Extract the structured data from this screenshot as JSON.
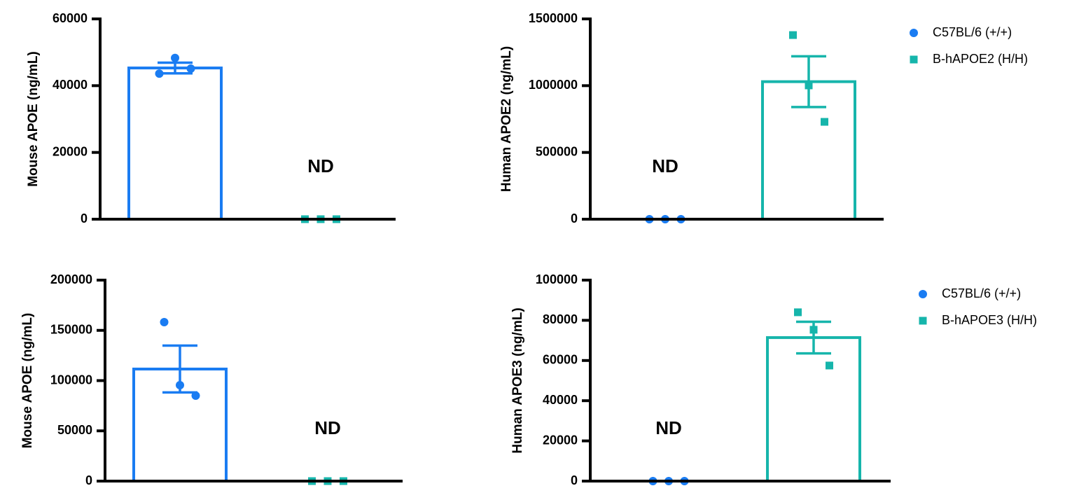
{
  "chart_data": [
    {
      "type": "bar",
      "ylabel": "Mouse APOE (ng/mL)",
      "ylim": [
        0,
        60000
      ],
      "yticks": [
        0,
        20000,
        40000,
        60000
      ],
      "series": [
        {
          "color": "#1a7cf2",
          "marker": "circle",
          "value": 45300,
          "error": 1600,
          "points": [
            43600,
            48300,
            45100
          ]
        },
        {
          "color": "#16b5ab",
          "marker": "square",
          "value": 0,
          "points": [
            0,
            0,
            0
          ],
          "label": "ND"
        }
      ]
    },
    {
      "type": "bar",
      "ylabel": "Human APOE2 (ng/mL)",
      "ylim": [
        0,
        1500000
      ],
      "yticks": [
        0,
        500000,
        1000000,
        1500000
      ],
      "legend": true,
      "series": [
        {
          "name": "C57BL/6 (+/+)",
          "color": "#1a7cf2",
          "marker": "circle",
          "value": 0,
          "points": [
            0,
            0,
            0
          ],
          "label": "ND"
        },
        {
          "name": "B-hAPOE2 (H/H)",
          "color": "#16b5ab",
          "marker": "square",
          "value": 1030000,
          "error": 190000,
          "points": [
            1379000,
            1002000,
            729000
          ]
        }
      ]
    },
    {
      "type": "bar",
      "ylabel": "Mouse APOE (ng/mL)",
      "ylim": [
        0,
        200000
      ],
      "yticks": [
        0,
        50000,
        100000,
        150000,
        200000
      ],
      "series": [
        {
          "color": "#1a7cf2",
          "marker": "circle",
          "value": 111500,
          "error": 23300,
          "points": [
            158200,
            95500,
            85000
          ]
        },
        {
          "color": "#16b5ab",
          "marker": "square",
          "value": 0,
          "points": [
            0,
            0,
            0
          ],
          "label": "ND"
        }
      ]
    },
    {
      "type": "bar",
      "ylabel": "Human APOE3 (ng/mL)",
      "ylim": [
        0,
        100000
      ],
      "yticks": [
        0,
        20000,
        40000,
        60000,
        80000,
        100000
      ],
      "legend": true,
      "series": [
        {
          "name": "C57BL/6 (+/+)",
          "color": "#1a7cf2",
          "marker": "circle",
          "value": 0,
          "points": [
            0,
            0,
            0
          ],
          "label": "ND"
        },
        {
          "name": "B-hAPOE3 (H/H)",
          "color": "#16b5ab",
          "marker": "square",
          "value": 71400,
          "error": 7850,
          "points": [
            84000,
            75300,
            57500
          ]
        }
      ]
    }
  ]
}
